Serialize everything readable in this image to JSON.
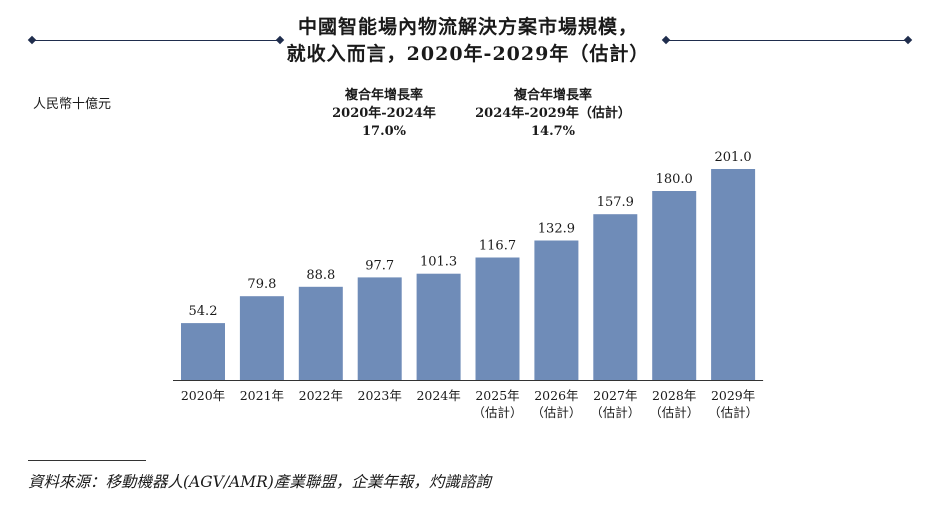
{
  "title_line1": "中國智能場內物流解決方案市場規模，",
  "title_line2": "就收入而言，2020年-2029年（估計）",
  "unit_label": "人民幣十億元",
  "cagr": [
    {
      "heading": "複合年增長率",
      "period": "2020年-2024年",
      "value": "17.0%"
    },
    {
      "heading": "複合年增長率",
      "period": "2024年-2029年（估計）",
      "value": "14.7%"
    }
  ],
  "source": "資料來源：移動機器人(AGV/AMR)產業聯盟，企業年報，灼識諮詢",
  "colors": {
    "bar": "#6f8cb8",
    "rule": "#1f2d4d"
  },
  "chart_data": {
    "type": "bar",
    "title": "中國智能場內物流解決方案市場規模，就收入而言，2020年-2029年（估計）",
    "ylabel": "人民幣十億元",
    "categories": [
      [
        "2020年"
      ],
      [
        "2021年"
      ],
      [
        "2022年"
      ],
      [
        "2023年"
      ],
      [
        "2024年"
      ],
      [
        "2025年",
        "（估計）"
      ],
      [
        "2026年",
        "（估計）"
      ],
      [
        "2027年",
        "（估計）"
      ],
      [
        "2028年",
        "（估計）"
      ],
      [
        "2029年",
        "（估計）"
      ]
    ],
    "values": [
      54.2,
      79.8,
      88.8,
      97.7,
      101.3,
      116.7,
      132.9,
      157.9,
      180.0,
      201.0
    ],
    "value_labels": [
      "54.2",
      "79.8",
      "88.8",
      "97.7",
      "101.3",
      "116.7",
      "132.9",
      "157.9",
      "180.0",
      "201.0"
    ],
    "ylim": [
      0,
      201.0
    ],
    "grid": false
  }
}
